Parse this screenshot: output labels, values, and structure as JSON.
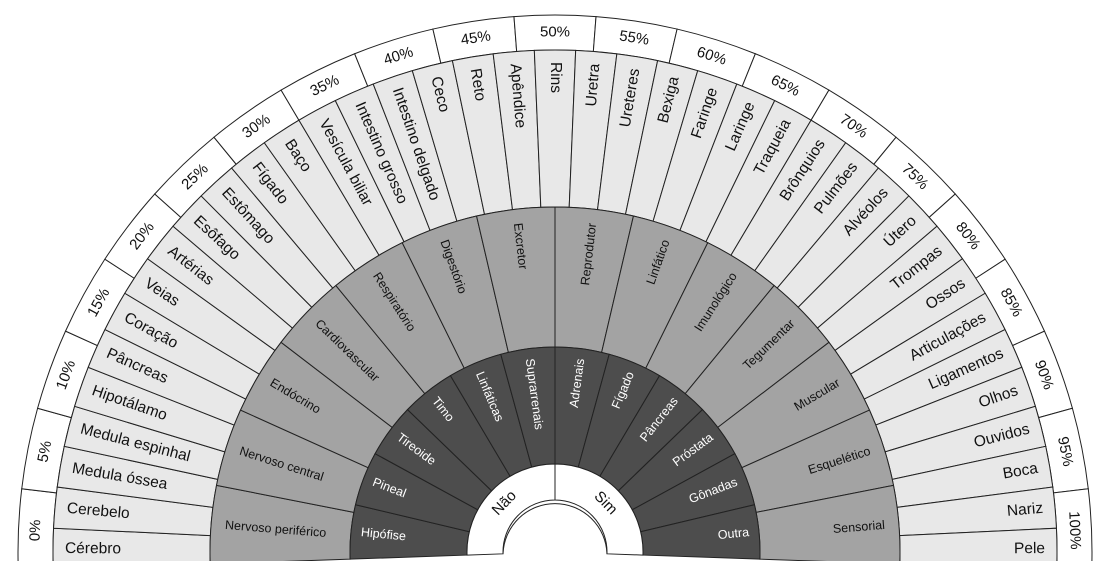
{
  "percent_scale": [
    "0%",
    "5%",
    "10%",
    "15%",
    "20%",
    "25%",
    "30%",
    "35%",
    "40%",
    "45%",
    "50%",
    "55%",
    "60%",
    "65%",
    "70%",
    "75%",
    "80%",
    "85%",
    "90%",
    "95%",
    "100%"
  ],
  "organs": [
    "Cérebro",
    "Cerebelo",
    "Medula óssea",
    "Medula espinhal",
    "Hipotálamo",
    "Pâncreas",
    "Coração",
    "Veias",
    "Artérias",
    "Esôfago",
    "Estômago",
    "Fígado",
    "Baço",
    "Vesícula biliar",
    "Intestino grosso",
    "Intestino delgado",
    "Ceco",
    "Reto",
    "Apêndice",
    "Rins",
    "Uretra",
    "Ureteres",
    "Bexiga",
    "Faringe",
    "Laringe",
    "Traqueia",
    "Brônquios",
    "Pulmões",
    "Alvéolos",
    "Útero",
    "Trompas",
    "Ossos",
    "Articulações",
    "Ligamentos",
    "Olhos",
    "Ouvidos",
    "Boca",
    "Nariz",
    "Pele"
  ],
  "systems": [
    "Nervoso periférico",
    "Nervoso central",
    "Endócrino",
    "Cardiovascular",
    "Respiratório",
    "Digestório",
    "Excretor",
    "Reprodutor",
    "Linfático",
    "Imunológico",
    "Tegumentar",
    "Muscular",
    "Esquelético",
    "Sensorial"
  ],
  "glands": [
    "Hipófise",
    "Pineal",
    "Tireoide",
    "Timo",
    "Linfáticas",
    "Suprarrenais",
    "Adrenais",
    "Fígado",
    "Pâncreas",
    "Próstata",
    "Gônadas",
    "Outra"
  ],
  "answers": [
    "Não",
    "Sim"
  ],
  "colors": {
    "background": "#ffffff",
    "percent_ring": "#ffffff",
    "organ_ring": "#e8e8e8",
    "system_ring": "#a3a3a3",
    "gland_ring": "#4d4d4d",
    "center": "#ffffff",
    "stroke": "#222222"
  }
}
